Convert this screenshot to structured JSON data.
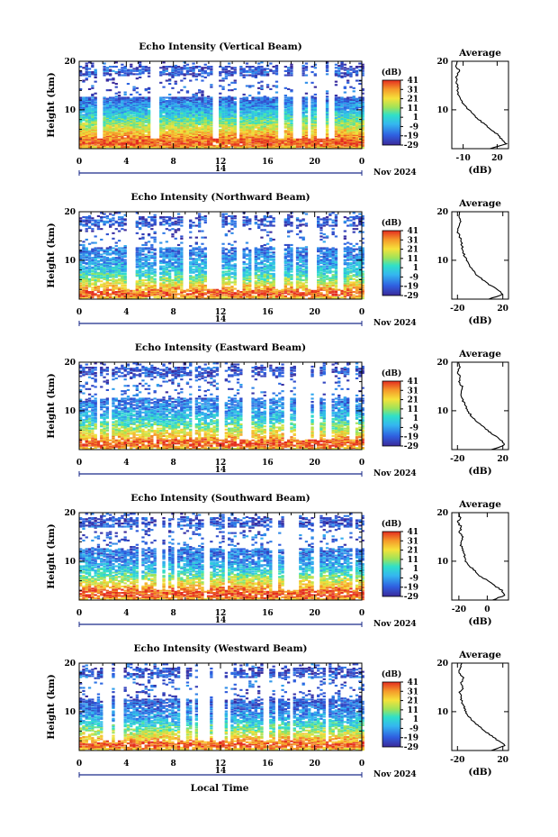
{
  "figure": {
    "x_axis_title": "Local Time",
    "date_label": "Nov 2024",
    "day_marker": "14"
  },
  "chart_data": [
    {
      "type": "heatmap",
      "title": "Echo Intensity (Vertical Beam)",
      "ylabel": "Height (km)",
      "xlabel": "Local Time",
      "x_ticks": [
        "0",
        "4",
        "8",
        "12",
        "16",
        "20",
        "0"
      ],
      "y_ticks": [
        "20",
        "10"
      ],
      "xlim": [
        0,
        24
      ],
      "ylim": [
        2,
        20
      ],
      "colorbar": {
        "label": "(dB)",
        "ticks": [
          "41",
          "31",
          "21",
          "11",
          "1",
          "-9",
          "-19",
          "-29"
        ],
        "range": [
          -29,
          41
        ]
      }
    },
    {
      "type": "line",
      "title": "Average",
      "xlabel": "(dB)",
      "ylabel": "Height (km)",
      "x_ticks": [
        "-10",
        "20"
      ],
      "y_ticks": [
        "20",
        "10"
      ],
      "xlim": [
        -20,
        30
      ],
      "ylim": [
        2,
        20
      ],
      "profile": {
        "height_km": [
          2,
          3,
          4,
          5,
          6,
          7,
          8,
          9,
          10,
          11,
          12,
          13,
          14,
          15,
          16,
          17,
          18,
          19,
          20
        ],
        "db": [
          14,
          28,
          24,
          20,
          14,
          9,
          4,
          -1,
          -5,
          -9,
          -12,
          -14,
          -15,
          -15,
          -16,
          -16,
          -13,
          -17,
          -15
        ]
      }
    },
    {
      "type": "heatmap",
      "title": "Echo Intensity (Northward Beam)",
      "ylabel": "Height (km)",
      "xlabel": "Local Time",
      "x_ticks": [
        "0",
        "4",
        "8",
        "12",
        "16",
        "20",
        "0"
      ],
      "y_ticks": [
        "20",
        "10"
      ],
      "xlim": [
        0,
        24
      ],
      "ylim": [
        2,
        20
      ],
      "colorbar": {
        "label": "(dB)",
        "ticks": [
          "41",
          "31",
          "21",
          "11",
          "1",
          "-9",
          "-19",
          "-29"
        ],
        "range": [
          -29,
          41
        ]
      }
    },
    {
      "type": "line",
      "title": "Average",
      "xlabel": "(dB)",
      "ylabel": "Height (km)",
      "x_ticks": [
        "-20",
        "20"
      ],
      "y_ticks": [
        "20",
        "10"
      ],
      "xlim": [
        -25,
        25
      ],
      "ylim": [
        2,
        20
      ],
      "profile": {
        "height_km": [
          2,
          3,
          4,
          5,
          6,
          7,
          8,
          9,
          10,
          11,
          12,
          13,
          14,
          15,
          16,
          17,
          18,
          19,
          20
        ],
        "db": [
          8,
          20,
          15,
          8,
          2,
          -3,
          -7,
          -10,
          -12,
          -14,
          -15,
          -16,
          -17,
          -18,
          -20,
          -18,
          -17,
          -19,
          -18
        ]
      }
    },
    {
      "type": "heatmap",
      "title": "Echo Intensity (Eastward Beam)",
      "ylabel": "Height (km)",
      "xlabel": "Local Time",
      "x_ticks": [
        "0",
        "4",
        "8",
        "12",
        "16",
        "20",
        "0"
      ],
      "y_ticks": [
        "20",
        "10"
      ],
      "xlim": [
        0,
        24
      ],
      "ylim": [
        2,
        20
      ],
      "colorbar": {
        "label": "(dB)",
        "ticks": [
          "41",
          "31",
          "21",
          "11",
          "1",
          "-9",
          "-19",
          "-29"
        ],
        "range": [
          -29,
          41
        ]
      }
    },
    {
      "type": "line",
      "title": "Average",
      "xlabel": "(dB)",
      "ylabel": "Height (km)",
      "x_ticks": [
        "-20",
        "20"
      ],
      "y_ticks": [
        "20",
        "10"
      ],
      "xlim": [
        -25,
        25
      ],
      "ylim": [
        2,
        20
      ],
      "profile": {
        "height_km": [
          2,
          3,
          4,
          5,
          6,
          7,
          8,
          9,
          10,
          11,
          12,
          13,
          14,
          15,
          16,
          17,
          18,
          19,
          20
        ],
        "db": [
          10,
          22,
          18,
          12,
          6,
          1,
          -4,
          -8,
          -11,
          -13,
          -15,
          -16,
          -17,
          -16,
          -19,
          -17,
          -20,
          -18,
          -19
        ]
      }
    },
    {
      "type": "heatmap",
      "title": "Echo Intensity (Southward Beam)",
      "ylabel": "Height (km)",
      "xlabel": "Local Time",
      "x_ticks": [
        "0",
        "4",
        "8",
        "12",
        "16",
        "20",
        "0"
      ],
      "y_ticks": [
        "20",
        "10"
      ],
      "xlim": [
        0,
        24
      ],
      "ylim": [
        2,
        20
      ],
      "colorbar": {
        "label": "(dB)",
        "ticks": [
          "41",
          "31",
          "21",
          "11",
          "1",
          "-9",
          "-19",
          "-29"
        ],
        "range": [
          -29,
          41
        ]
      }
    },
    {
      "type": "line",
      "title": "Average",
      "xlabel": "(dB)",
      "ylabel": "Height (km)",
      "x_ticks": [
        "-20",
        "0"
      ],
      "y_ticks": [
        "20",
        "10"
      ],
      "xlim": [
        -25,
        15
      ],
      "ylim": [
        2,
        20
      ],
      "profile": {
        "height_km": [
          2,
          3,
          4,
          5,
          6,
          7,
          8,
          9,
          10,
          11,
          12,
          13,
          14,
          15,
          16,
          17,
          18,
          19,
          20
        ],
        "db": [
          4,
          12,
          10,
          5,
          0,
          -5,
          -9,
          -12,
          -15,
          -16,
          -17,
          -18,
          -19,
          -17,
          -20,
          -18,
          -21,
          -19,
          -20
        ]
      }
    },
    {
      "type": "heatmap",
      "title": "Echo Intensity (Westward Beam)",
      "ylabel": "Height (km)",
      "xlabel": "Local Time",
      "x_ticks": [
        "0",
        "4",
        "8",
        "12",
        "16",
        "20",
        "0"
      ],
      "y_ticks": [
        "20",
        "10"
      ],
      "xlim": [
        0,
        24
      ],
      "ylim": [
        2,
        20
      ],
      "colorbar": {
        "label": "(dB)",
        "ticks": [
          "41",
          "31",
          "21",
          "11",
          "1",
          "-9",
          "-19",
          "-29"
        ],
        "range": [
          -29,
          41
        ]
      }
    },
    {
      "type": "line",
      "title": "Average",
      "xlabel": "(dB)",
      "ylabel": "Height (km)",
      "x_ticks": [
        "-20",
        "20"
      ],
      "y_ticks": [
        "20",
        "10"
      ],
      "xlim": [
        -25,
        25
      ],
      "ylim": [
        2,
        20
      ],
      "profile": {
        "height_km": [
          2,
          3,
          4,
          5,
          6,
          7,
          8,
          9,
          10,
          11,
          12,
          13,
          14,
          15,
          16,
          17,
          18,
          19,
          20
        ],
        "db": [
          10,
          22,
          16,
          10,
          4,
          -1,
          -6,
          -10,
          -13,
          -14,
          -16,
          -17,
          -18,
          -15,
          -17,
          -14,
          -19,
          -18,
          -16
        ]
      }
    }
  ]
}
